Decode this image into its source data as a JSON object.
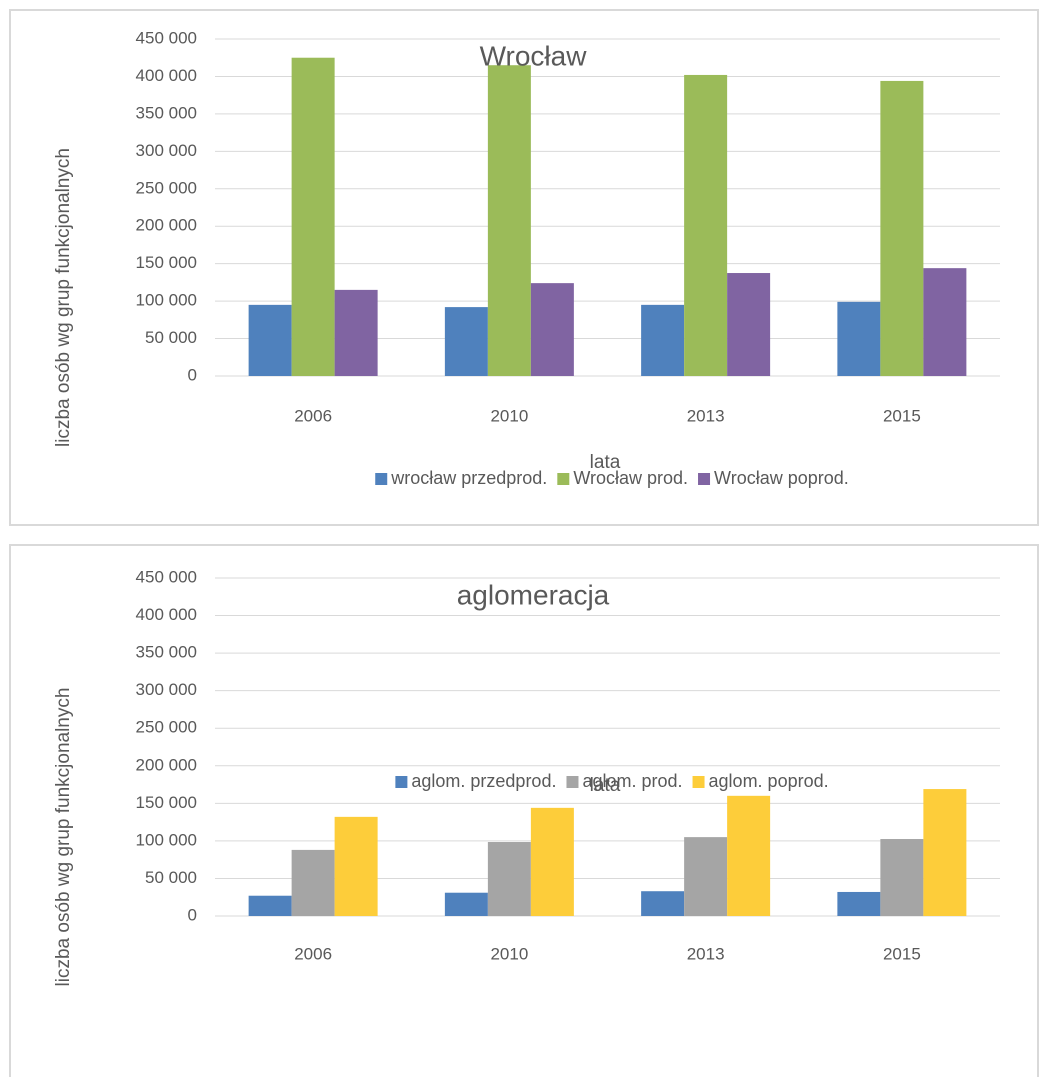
{
  "chart_data": [
    {
      "type": "bar",
      "title": "Wrocław",
      "x_label": "lata",
      "y_label": "liczba osób wg grup funkcjonalnych",
      "categories": [
        "2006",
        "2010",
        "2013",
        "2015"
      ],
      "series": [
        {
          "name": "wrocław przedprod.",
          "color": "#4f81bd",
          "values": [
            95000,
            92000,
            95000,
            99000
          ]
        },
        {
          "name": "Wrocław prod.",
          "color": "#9bbb59",
          "values": [
            425000,
            415000,
            402000,
            394000
          ]
        },
        {
          "name": "Wrocław poprod.",
          "color": "#8064a2",
          "values": [
            115000,
            124000,
            137500,
            144000
          ]
        }
      ],
      "ylim": [
        0,
        450000
      ],
      "yticks": [
        0,
        {
          "value": 50000,
          "label": "50 000"
        },
        {
          "value": 100000,
          "label": "100 000"
        },
        {
          "value": 150000,
          "label": "150 000"
        },
        {
          "value": 200000,
          "label": "200 000"
        },
        {
          "value": 250000,
          "label": "250 000"
        },
        {
          "value": 300000,
          "label": "300 000"
        },
        {
          "value": 350000,
          "label": "350 000"
        },
        {
          "value": 400000,
          "label": "400 000"
        },
        {
          "value": 450000,
          "label": "450 000"
        }
      ],
      "grid": true,
      "legend": "bottom"
    },
    {
      "type": "bar",
      "title": "aglomeracja",
      "x_label": "lata",
      "y_label": "liczba osób wg grup funkcjonalnych",
      "categories": [
        "2006",
        "2010",
        "2013",
        "2015"
      ],
      "series": [
        {
          "name": "aglom. przedprod.",
          "color": "#4f81bd",
          "values": [
            27000,
            31000,
            33000,
            32000
          ]
        },
        {
          "name": "aglom. prod.",
          "color": "#a5a5a5",
          "values": [
            88000,
            98500,
            105000,
            102500
          ]
        },
        {
          "name": "aglom. poprod.",
          "color": "#fdcd3a",
          "values": [
            132000,
            144000,
            160000,
            169000
          ]
        }
      ],
      "ylim": [
        0,
        450000
      ],
      "yticks": [
        0,
        {
          "value": 50000,
          "label": "50 000"
        },
        {
          "value": 100000,
          "label": "100 000"
        },
        {
          "value": 150000,
          "label": "150 000"
        },
        {
          "value": 200000,
          "label": "200 000"
        },
        {
          "value": 250000,
          "label": "250 000"
        },
        {
          "value": 300000,
          "label": "300 000"
        },
        {
          "value": 350000,
          "label": "350 000"
        },
        {
          "value": 400000,
          "label": "400 000"
        },
        {
          "value": 450000,
          "label": "450 000"
        }
      ],
      "grid": true,
      "legend": "bottom"
    }
  ]
}
